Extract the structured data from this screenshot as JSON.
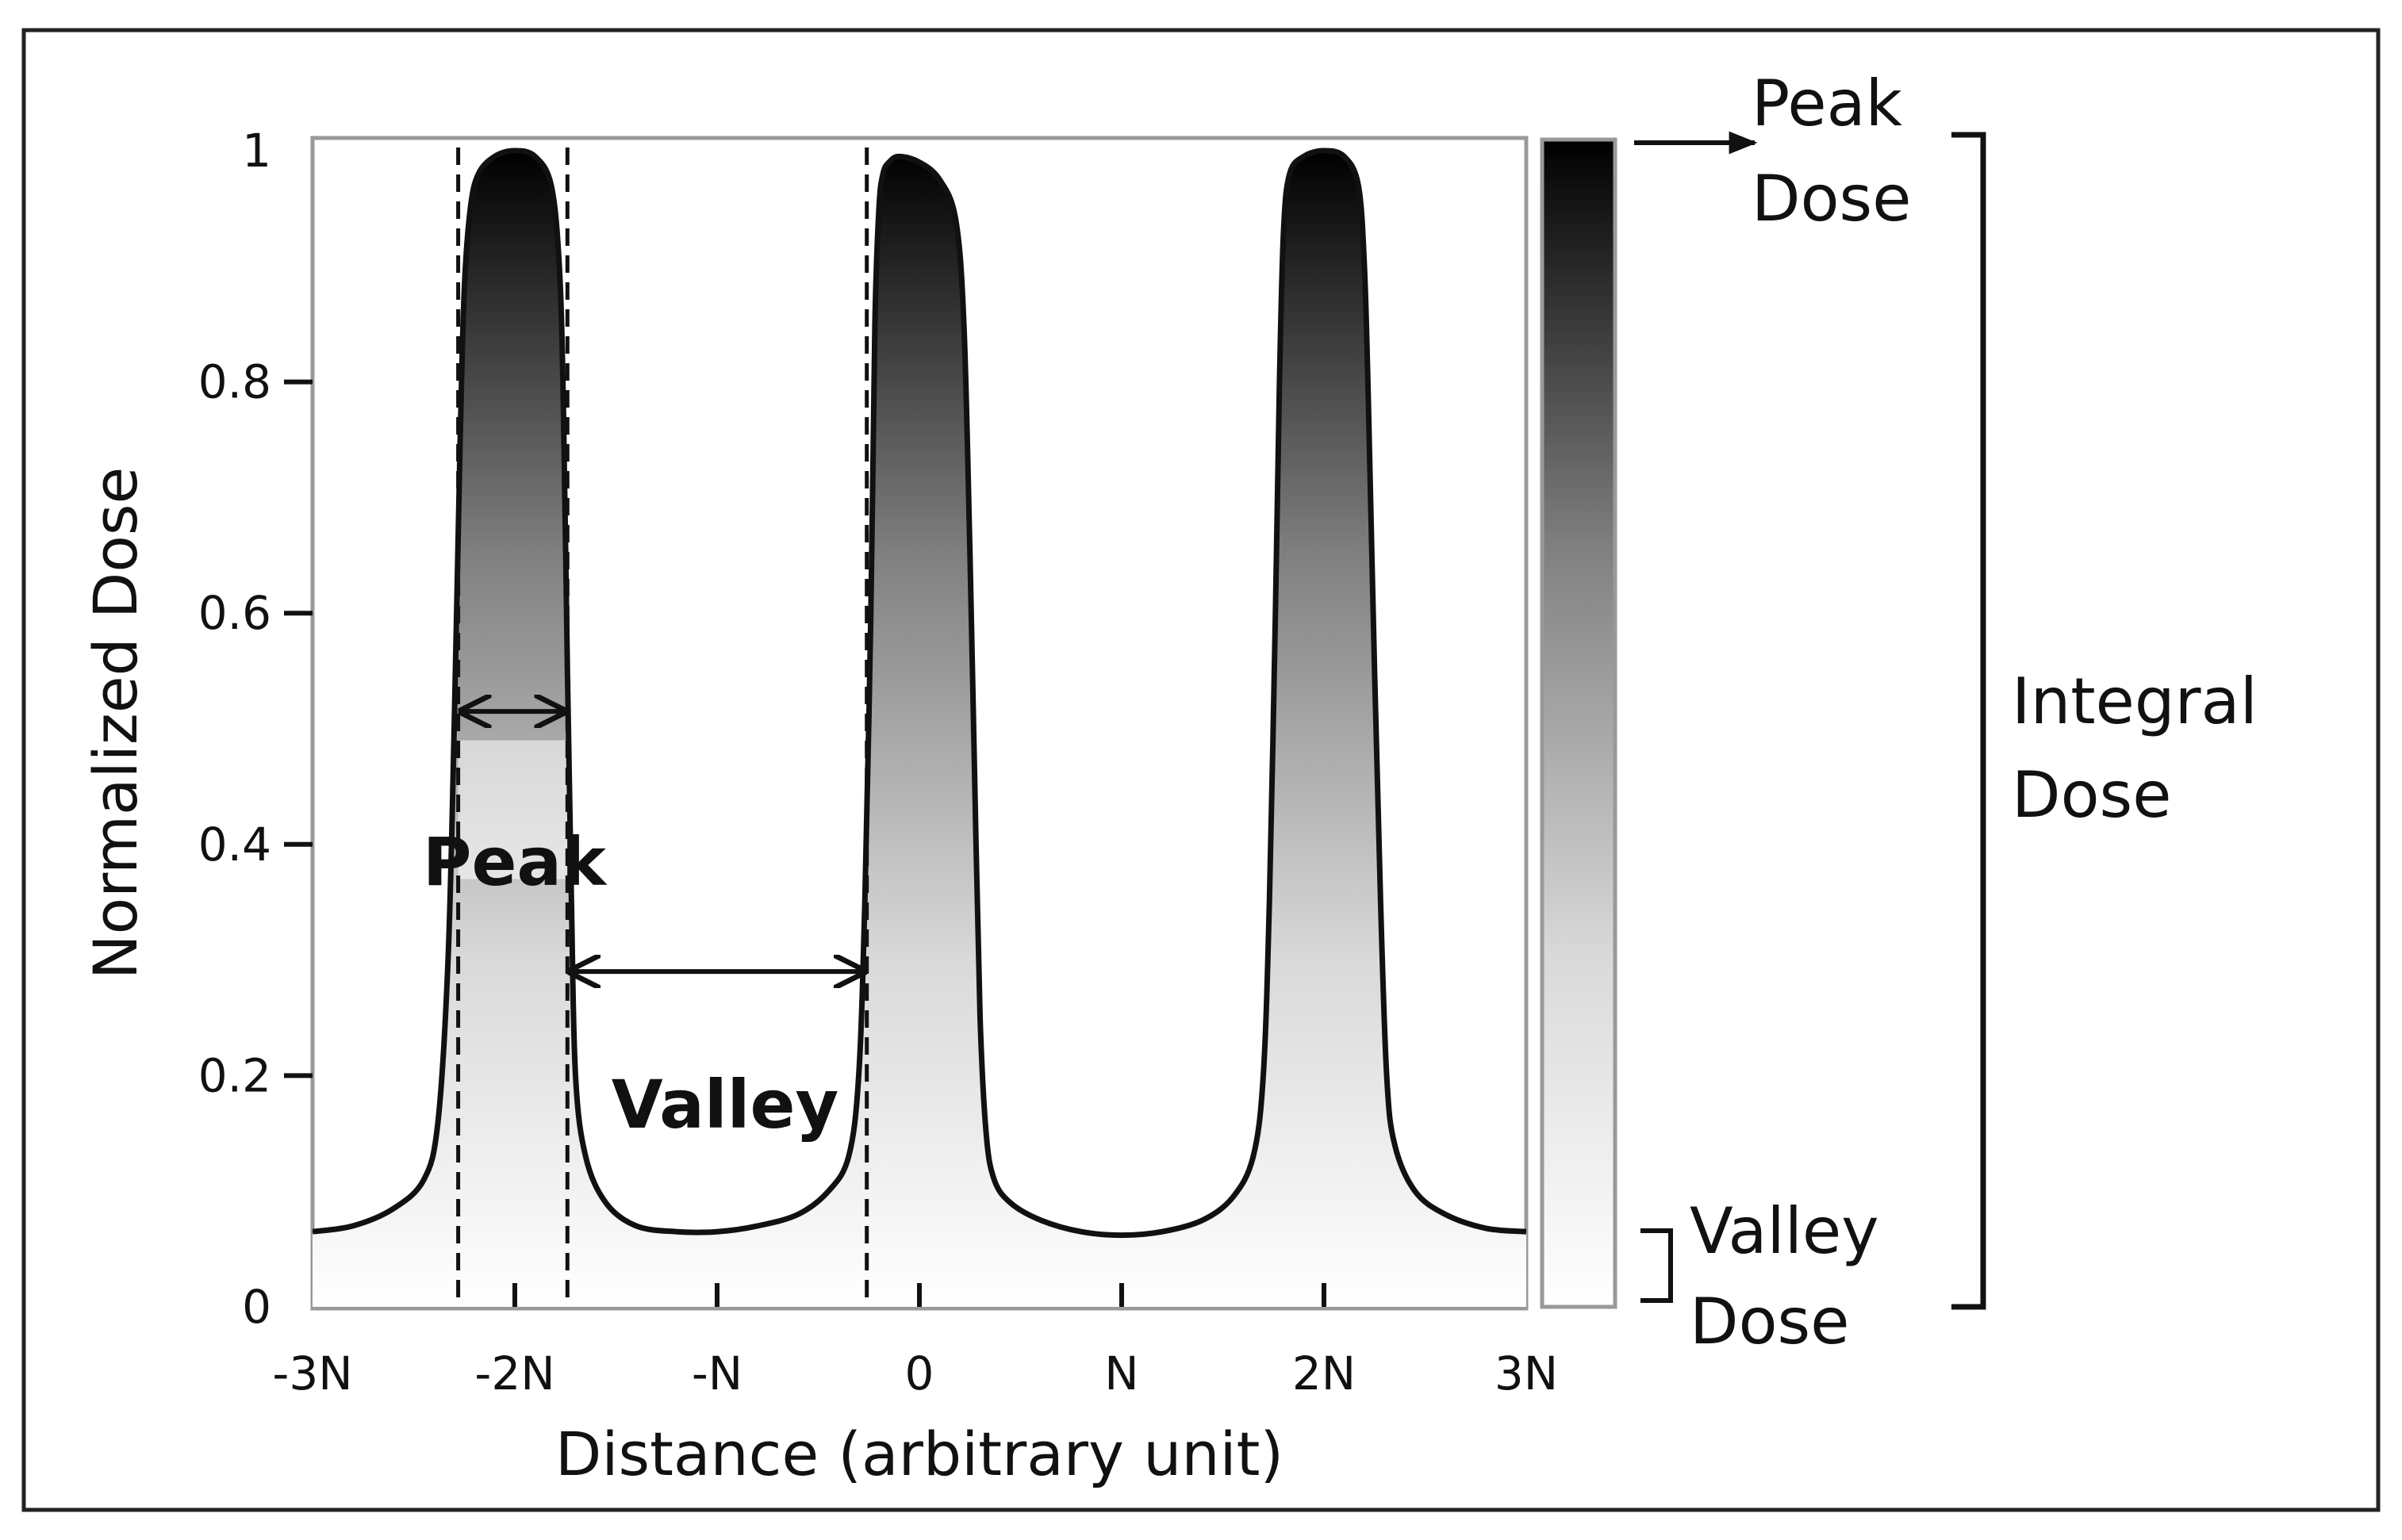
{
  "chart_data": {
    "type": "line",
    "title": "",
    "xlabel": "Distance (arbitrary unit)",
    "ylabel": "Normalized Dose",
    "x_ticks": [
      "-3N",
      "-2N",
      "-N",
      "0",
      "N",
      "2N",
      "3N"
    ],
    "y_ticks": [
      "0",
      "0.2",
      "0.4",
      "0.6",
      "0.8",
      "1"
    ],
    "xlim": [
      -3,
      3
    ],
    "ylim": [
      0,
      1
    ],
    "x_unit": "N",
    "grid": false,
    "fill": "gradient black (dose 1) to white (dose 0)",
    "series": [
      {
        "x": [
          -3.0,
          -2.8,
          -2.6,
          -2.45,
          -2.38,
          -2.33,
          -2.3,
          -2.27,
          -2.25,
          -2.22,
          -2.18,
          -2.1,
          -2.0,
          -1.9,
          -1.82,
          -1.78,
          -1.76,
          -1.74,
          -1.72,
          -1.7,
          -1.65,
          -1.55,
          -1.4,
          -1.2,
          -1.0,
          -0.8,
          -0.6,
          -0.45,
          -0.35,
          -0.3,
          -0.27,
          -0.24,
          -0.22,
          -0.2,
          -0.18,
          -0.15,
          -0.1,
          0.0,
          0.1,
          0.18,
          0.22,
          0.25,
          0.28,
          0.3,
          0.33,
          0.37,
          0.45,
          0.6,
          0.8,
          1.0,
          1.2,
          1.4,
          1.55,
          1.65,
          1.7,
          1.73,
          1.76,
          1.78,
          1.8,
          1.83,
          1.9,
          2.0,
          2.1,
          2.17,
          2.2,
          2.22,
          2.25,
          2.28,
          2.31,
          2.35,
          2.45,
          2.6,
          2.8,
          3.0
        ],
        "y": [
          0.065,
          0.07,
          0.085,
          0.11,
          0.16,
          0.3,
          0.5,
          0.75,
          0.88,
          0.95,
          0.98,
          0.995,
          1.0,
          0.995,
          0.97,
          0.9,
          0.78,
          0.55,
          0.35,
          0.2,
          0.13,
          0.09,
          0.07,
          0.065,
          0.065,
          0.07,
          0.08,
          0.1,
          0.13,
          0.2,
          0.35,
          0.6,
          0.85,
          0.95,
          0.98,
          0.99,
          0.995,
          0.99,
          0.975,
          0.94,
          0.85,
          0.65,
          0.4,
          0.25,
          0.15,
          0.11,
          0.09,
          0.075,
          0.065,
          0.062,
          0.065,
          0.075,
          0.095,
          0.13,
          0.2,
          0.35,
          0.6,
          0.8,
          0.93,
          0.98,
          0.995,
          1.0,
          0.995,
          0.97,
          0.9,
          0.78,
          0.55,
          0.35,
          0.2,
          0.14,
          0.1,
          0.08,
          0.068,
          0.065
        ]
      }
    ],
    "annotations": [
      {
        "text": "Peak"
      },
      {
        "text": "Valley"
      }
    ],
    "colorbar": {
      "labels": [
        "Peak",
        "Dose",
        "Valley",
        "Dose"
      ],
      "integral_labels": [
        "Integral",
        "Dose"
      ],
      "top_color": "#000000",
      "bottom_color": "#ffffff"
    }
  }
}
